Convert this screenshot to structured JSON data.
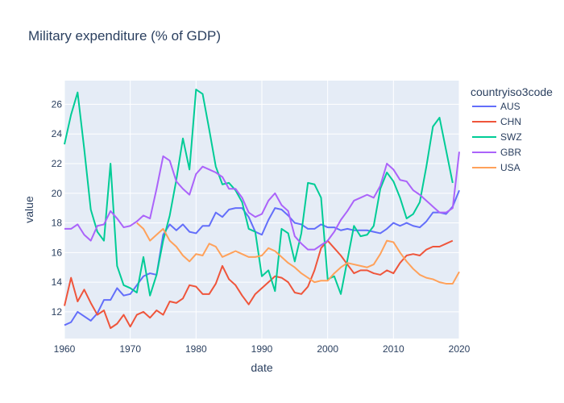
{
  "chart_data": {
    "type": "line",
    "title": "Military expenditure (% of GDP)",
    "xlabel": "date",
    "ylabel": "value",
    "xlim": [
      1960,
      2020
    ],
    "ylim": [
      10.2,
      27.6
    ],
    "x_ticks": [
      1960,
      1970,
      1980,
      1990,
      2000,
      2010,
      2020
    ],
    "y_ticks": [
      12,
      14,
      16,
      18,
      20,
      22,
      24,
      26
    ],
    "legend_title": "countryiso3code",
    "legend_position": "right",
    "grid": true,
    "plot_background": "#e5ecf6",
    "x": [
      1960,
      1961,
      1962,
      1963,
      1964,
      1965,
      1966,
      1967,
      1968,
      1969,
      1970,
      1971,
      1972,
      1973,
      1974,
      1975,
      1976,
      1977,
      1978,
      1979,
      1980,
      1981,
      1982,
      1983,
      1984,
      1985,
      1986,
      1987,
      1988,
      1989,
      1990,
      1991,
      1992,
      1993,
      1994,
      1995,
      1996,
      1997,
      1998,
      1999,
      2000,
      2001,
      2002,
      2003,
      2004,
      2005,
      2006,
      2007,
      2008,
      2009,
      2010,
      2011,
      2012,
      2013,
      2014,
      2015,
      2016,
      2017,
      2018,
      2019,
      2020
    ],
    "series": [
      {
        "name": "AUS",
        "color": "#636efa",
        "values": [
          11.1,
          11.3,
          12.0,
          11.7,
          11.4,
          11.9,
          12.8,
          12.8,
          13.6,
          13.1,
          13.2,
          13.8,
          14.4,
          14.6,
          14.5,
          17.2,
          17.9,
          17.5,
          17.9,
          17.4,
          17.3,
          17.8,
          17.8,
          18.7,
          18.4,
          18.9,
          19.0,
          19.0,
          18.4,
          17.4,
          17.2,
          18.2,
          19.0,
          18.9,
          18.5,
          18.0,
          17.9,
          17.6,
          17.6,
          17.9,
          17.7,
          17.7,
          17.5,
          17.6,
          17.5,
          17.5,
          17.5,
          17.4,
          17.3,
          17.6,
          18.0,
          17.8,
          18.0,
          17.8,
          17.7,
          18.1,
          18.7,
          18.7,
          18.6,
          19.1,
          20.2
        ]
      },
      {
        "name": "CHN",
        "color": "#ef553b",
        "values": [
          12.4,
          14.3,
          12.7,
          13.5,
          12.6,
          11.8,
          12.1,
          10.9,
          11.2,
          11.8,
          11.0,
          11.8,
          12.0,
          11.6,
          12.1,
          11.8,
          12.7,
          12.6,
          12.9,
          13.8,
          13.7,
          13.2,
          13.2,
          13.9,
          15.1,
          14.2,
          13.8,
          13.1,
          12.5,
          13.2,
          13.6,
          14.0,
          14.4,
          14.3,
          14.0,
          13.3,
          13.2,
          13.7,
          14.8,
          16.3,
          16.8,
          16.3,
          15.8,
          15.2,
          14.6,
          14.8,
          14.8,
          14.6,
          14.5,
          14.8,
          14.6,
          15.3,
          15.8,
          15.9,
          15.8,
          16.2,
          16.4,
          16.4,
          16.6,
          16.8,
          null
        ]
      },
      {
        "name": "SWZ",
        "color": "#00cc96",
        "values": [
          23.3,
          25.3,
          26.8,
          23.0,
          18.9,
          17.4,
          16.8,
          22.0,
          15.1,
          13.8,
          13.6,
          13.3,
          15.7,
          13.1,
          14.5,
          16.8,
          18.5,
          20.9,
          23.7,
          21.6,
          27.0,
          26.7,
          24.3,
          21.8,
          20.6,
          20.7,
          20.2,
          19.4,
          17.6,
          17.4,
          14.4,
          14.8,
          13.4,
          17.6,
          17.3,
          15.4,
          17.3,
          20.7,
          20.6,
          19.7,
          14.2,
          14.4,
          13.2,
          15.5,
          17.8,
          17.1,
          17.2,
          17.8,
          20.3,
          21.4,
          20.8,
          19.7,
          18.3,
          18.6,
          19.4,
          21.8,
          24.5,
          25.1,
          22.9,
          20.7,
          null
        ]
      },
      {
        "name": "GBR",
        "color": "#ab63fa",
        "values": [
          17.6,
          17.6,
          17.9,
          17.2,
          16.8,
          17.8,
          17.9,
          18.8,
          18.3,
          17.7,
          17.8,
          18.1,
          18.5,
          18.3,
          20.3,
          22.5,
          22.2,
          20.8,
          20.3,
          19.9,
          21.3,
          21.8,
          21.6,
          21.4,
          21.1,
          20.3,
          20.3,
          19.7,
          18.7,
          18.4,
          18.6,
          19.5,
          20.0,
          19.2,
          18.8,
          17.1,
          16.6,
          16.2,
          16.2,
          16.5,
          16.8,
          17.4,
          18.2,
          18.8,
          19.5,
          19.7,
          19.9,
          19.7,
          20.5,
          22.0,
          21.6,
          20.9,
          20.8,
          20.2,
          19.9,
          19.5,
          19.1,
          18.7,
          18.7,
          19.0,
          22.8
        ]
      },
      {
        "name": "USA",
        "color": "#ffa15a",
        "values": [
          null,
          null,
          null,
          null,
          null,
          null,
          null,
          null,
          null,
          null,
          null,
          18.0,
          17.6,
          16.8,
          17.2,
          17.6,
          16.8,
          16.4,
          15.8,
          15.4,
          15.9,
          15.8,
          16.6,
          16.4,
          15.7,
          15.9,
          16.1,
          15.9,
          15.7,
          15.7,
          15.8,
          16.3,
          16.1,
          15.7,
          15.3,
          15.0,
          14.6,
          14.3,
          14.0,
          14.1,
          14.1,
          14.6,
          15.0,
          15.3,
          15.2,
          15.1,
          15.0,
          15.2,
          15.9,
          16.8,
          16.7,
          16.0,
          15.4,
          14.9,
          14.5,
          14.3,
          14.2,
          14.0,
          13.9,
          13.9,
          14.7
        ]
      }
    ]
  }
}
